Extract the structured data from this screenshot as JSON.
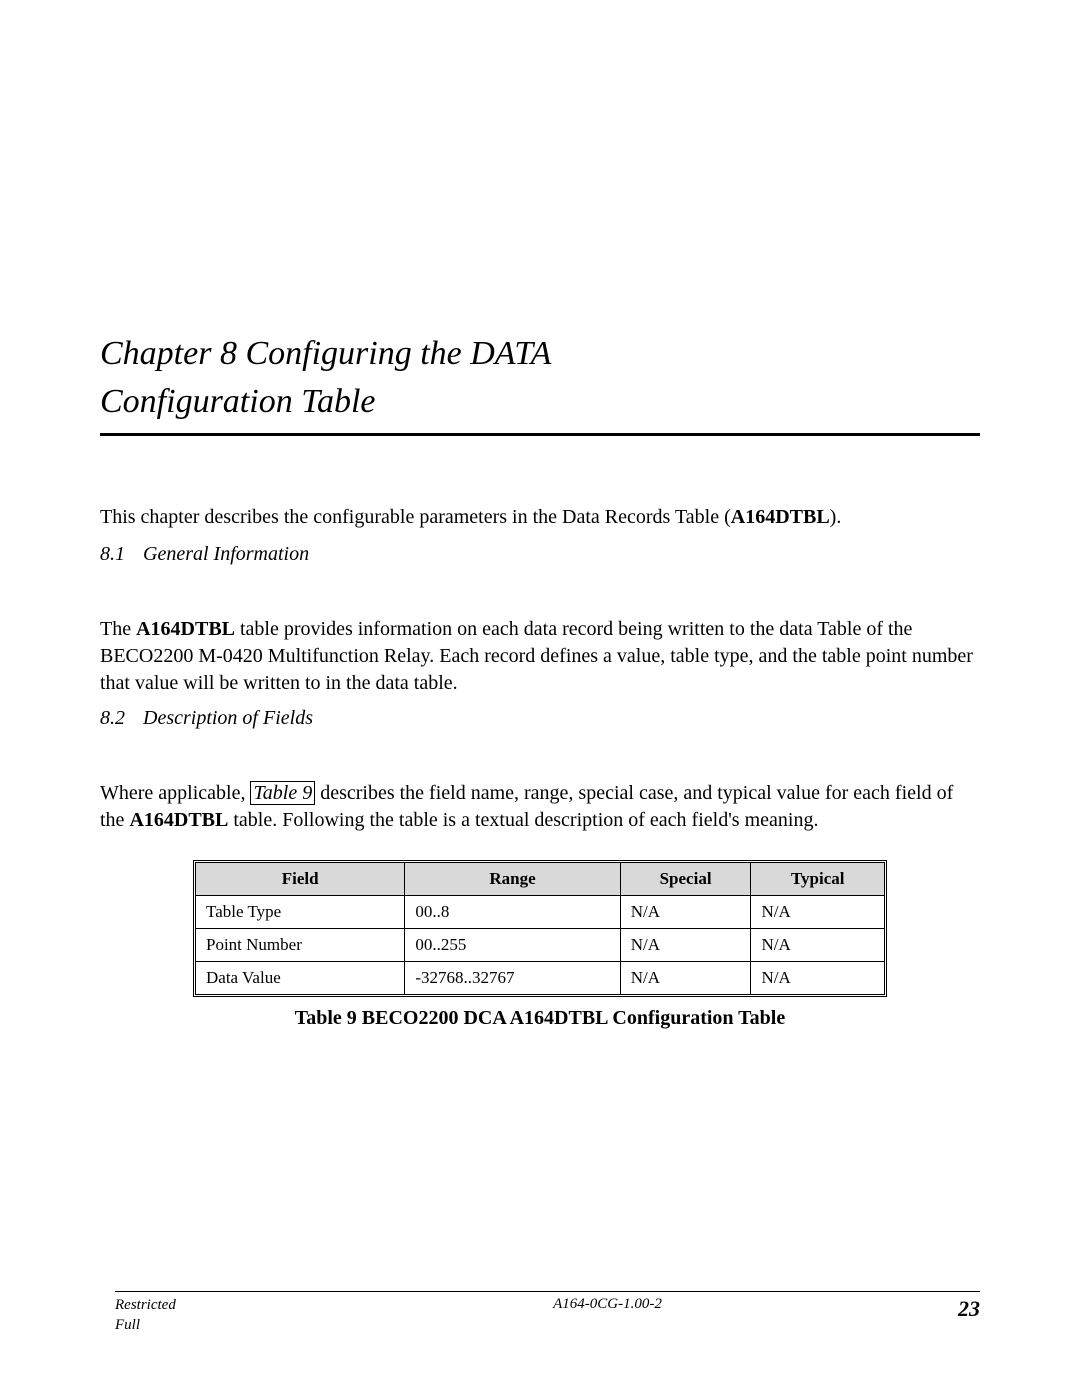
{
  "chapter": {
    "title_line1": "Chapter 8 Configuring the DATA",
    "title_line2": "Configuration Table"
  },
  "intro": {
    "prefix": "This chapter describes the configurable parameters in the Data Records Table (",
    "boldRef": "A164DTBL",
    "suffix": ")."
  },
  "section1": {
    "num": "8.1",
    "title": "General Information",
    "para_pre": "The ",
    "para_bold": "A164DTBL",
    "para_post": " table provides information on each data record being written to the data Table of the BECO2200 M-0420 Multifunction Relay. Each record defines a value, table type, and the table point number that value will be written to in the data table."
  },
  "section2": {
    "num": "8.2",
    "title": "Description of Fields",
    "para_pre": "Where applicable, ",
    "para_link": "Table 9",
    "para_mid": " describes the field name, range, special case, and typical value for each field of the ",
    "para_bold": "A164DTBL",
    "para_post": " table. Following the table is a textual description of each field's meaning."
  },
  "table": {
    "columns": [
      "Field",
      "Range",
      "Special",
      "Typical"
    ],
    "rows": [
      [
        "Table Type",
        "00..8",
        "N/A",
        "N/A"
      ],
      [
        "Point Number",
        "00..255",
        "N/A",
        "N/A"
      ],
      [
        "Data Value",
        "-32768..32767",
        "N/A",
        "N/A"
      ]
    ],
    "caption": "Table 9  BECO2200 DCA A164DTBL Configuration Table",
    "header_bg": "#d9d9d9",
    "border_color": "#000000"
  },
  "footer": {
    "left1": "Restricted",
    "left2": "Full",
    "center": "A164-0CG-1.00-2",
    "pageNum": "23"
  }
}
